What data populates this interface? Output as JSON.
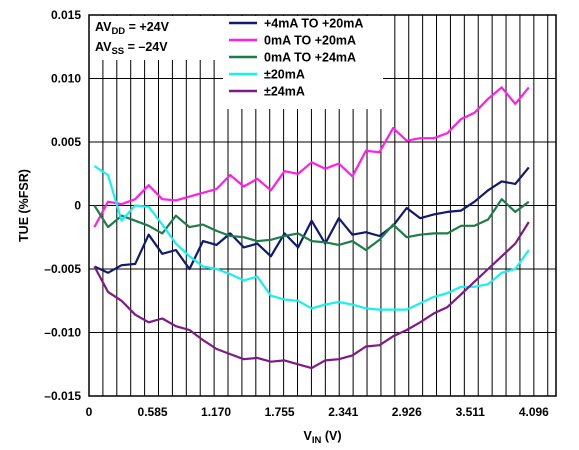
{
  "chart_data": {
    "type": "line",
    "title": "",
    "xlabel": "V",
    "xlabel_sub": "IN",
    "xlabel_unit": " (V)",
    "ylabel": "TUE (%FSR)",
    "xlim": [
      0,
      4.3
    ],
    "ylim": [
      -0.015,
      0.015
    ],
    "x_ticks": [
      0,
      0.585,
      1.17,
      1.755,
      2.341,
      2.926,
      3.511,
      4.096
    ],
    "x_tick_labels": [
      "0",
      "0.585",
      "1.170",
      "1.755",
      "2.341",
      "2.926",
      "3.511",
      "4.096"
    ],
    "y_ticks": [
      0.015,
      0.01,
      0.005,
      0,
      -0.005,
      -0.01,
      -0.015
    ],
    "y_tick_labels": [
      "0.015",
      "0.010",
      "0.005",
      "0",
      "–0.005",
      "–0.010",
      "–0.015"
    ],
    "grid": true,
    "legend_position": "top-center",
    "annotations": [
      {
        "text": "AV",
        "sub": "DD",
        "rest": " = +24V"
      },
      {
        "text": "AV",
        "sub": "SS",
        "rest": " = –24V"
      }
    ],
    "x": [
      0.05,
      0.175,
      0.3,
      0.425,
      0.55,
      0.675,
      0.8,
      0.925,
      1.05,
      1.175,
      1.3,
      1.425,
      1.55,
      1.675,
      1.8,
      1.925,
      2.05,
      2.175,
      2.3,
      2.425,
      2.55,
      2.675,
      2.8,
      2.925,
      3.05,
      3.175,
      3.3,
      3.425,
      3.55,
      3.675,
      3.8,
      3.925,
      4.05
    ],
    "series": [
      {
        "name": "+4mA TO +20mA",
        "color": "#101a6e",
        "values": [
          -0.0048,
          -0.0053,
          -0.0047,
          -0.0046,
          -0.0023,
          -0.0038,
          -0.0035,
          -0.005,
          -0.0028,
          -0.0031,
          -0.0022,
          -0.0033,
          -0.003,
          -0.004,
          -0.0022,
          -0.0033,
          -0.0012,
          -0.003,
          -0.001,
          -0.0023,
          -0.0021,
          -0.0024,
          -0.0016,
          -0.0002,
          -0.001,
          -0.0007,
          -0.0005,
          -0.0004,
          0.0003,
          0.0012,
          0.0019,
          0.0017,
          0.003
        ]
      },
      {
        "name": "0mA TO +20mA",
        "color": "#ff1ee6",
        "values": [
          -0.0017,
          0.0003,
          0.0001,
          0.0005,
          0.0016,
          0.0005,
          0.0004,
          0.0007,
          0.001,
          0.0013,
          0.0024,
          0.0015,
          0.0021,
          0.0012,
          0.0027,
          0.0025,
          0.0034,
          0.0029,
          0.0033,
          0.0023,
          0.0043,
          0.0042,
          0.0061,
          0.0051,
          0.0053,
          0.0053,
          0.0057,
          0.0068,
          0.0073,
          0.0084,
          0.0093,
          0.008,
          0.0093
        ]
      },
      {
        "name": "0mA TO +24mA",
        "color": "#1e7c49",
        "values": [
          0.0,
          -0.0017,
          -0.0008,
          -0.0012,
          -0.0016,
          -0.0022,
          -0.0008,
          -0.0017,
          -0.0015,
          -0.002,
          -0.0024,
          -0.0025,
          -0.0028,
          -0.0027,
          -0.0024,
          -0.0022,
          -0.0028,
          -0.0029,
          -0.0031,
          -0.0028,
          -0.0035,
          -0.0027,
          -0.0015,
          -0.0025,
          -0.0023,
          -0.0022,
          -0.0022,
          -0.0016,
          -0.0016,
          -0.0011,
          0.0005,
          -0.0005,
          0.0003
        ]
      },
      {
        "name": "±20mA",
        "color": "#18f0ee",
        "values": [
          0.0031,
          0.0024,
          -0.0012,
          0.0,
          -0.0001,
          -0.0015,
          -0.003,
          -0.004,
          -0.0048,
          -0.005,
          -0.0054,
          -0.0059,
          -0.0056,
          -0.0071,
          -0.0074,
          -0.0075,
          -0.0081,
          -0.0078,
          -0.0076,
          -0.0078,
          -0.0081,
          -0.0082,
          -0.0082,
          -0.0082,
          -0.0077,
          -0.0072,
          -0.0069,
          -0.0064,
          -0.0064,
          -0.0062,
          -0.0053,
          -0.005,
          -0.0035
        ]
      },
      {
        "name": "±24mA",
        "color": "#7e1a85",
        "values": [
          -0.0048,
          -0.0068,
          -0.0075,
          -0.0086,
          -0.0092,
          -0.0089,
          -0.0095,
          -0.0098,
          -0.0106,
          -0.0113,
          -0.0117,
          -0.0121,
          -0.012,
          -0.0123,
          -0.0122,
          -0.0125,
          -0.0128,
          -0.0122,
          -0.0121,
          -0.0118,
          -0.0111,
          -0.011,
          -0.0103,
          -0.0098,
          -0.0092,
          -0.0085,
          -0.008,
          -0.007,
          -0.006,
          -0.005,
          -0.004,
          -0.003,
          -0.0013
        ]
      }
    ]
  }
}
